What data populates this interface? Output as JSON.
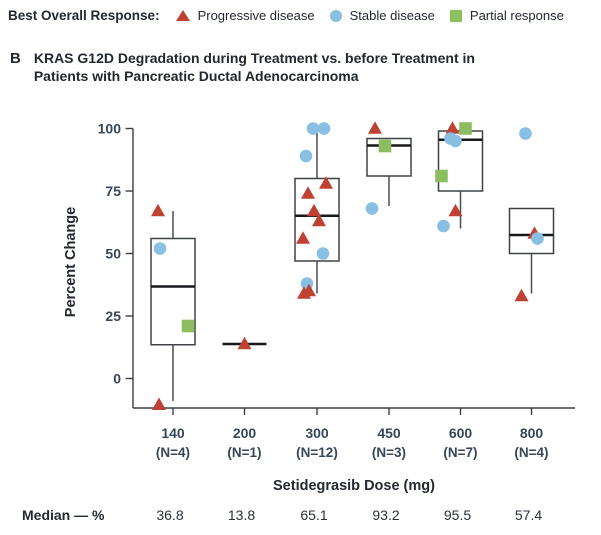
{
  "colors": {
    "progressive_disease": "#bf4132",
    "stable_disease": "#88bfe2",
    "partial_response": "#8cbe5f",
    "box_stroke": "#3f4347",
    "median_line": "#17191c",
    "axis_line": "#3a3e44",
    "tick_text": "#39465a",
    "title_text": "#24292f"
  },
  "legend": {
    "title": "Best Overall Response:",
    "items": [
      {
        "id": "progressive-disease",
        "marker": "triangle",
        "label": "Progressive disease"
      },
      {
        "id": "stable-disease",
        "marker": "circle",
        "label": "Stable disease"
      },
      {
        "id": "partial-response",
        "marker": "square",
        "label": "Partial response"
      }
    ]
  },
  "panel": {
    "letter": "B",
    "title_line1": "KRAS G12D Degradation during Treatment vs. before Treatment in",
    "title_line2": "Patients with Pancreatic Ductal Adenocarcinoma"
  },
  "chart_data": {
    "type": "box-scatter",
    "title": "KRAS G12D Degradation during Treatment vs. before Treatment in Patients with Pancreatic Ductal Adenocarcinoma",
    "ylabel": "Percent Change",
    "xlabel": "Setidegrasib Dose (mg)",
    "yticks": [
      0,
      25,
      50,
      75,
      100
    ],
    "ylim": [
      -14,
      103
    ],
    "grid": false,
    "legend_position": "top",
    "marker_types": {
      "PD": "Progressive disease (red triangle)",
      "SD": "Stable disease (blue circle)",
      "PR": "Partial response (green square)"
    },
    "median_row_label": "Median — %",
    "categories": [
      {
        "dose": "140",
        "n": "(N=4)",
        "median": "36.8",
        "box": {
          "q1": 13.5,
          "median": 36.8,
          "q3": 56,
          "whisker_low": -9,
          "whisker_high": 67
        },
        "points": [
          {
            "type": "PD",
            "value": 67,
            "dx": -15
          },
          {
            "type": "SD",
            "value": 52,
            "dx": -13
          },
          {
            "type": "PR",
            "value": 21,
            "dx": 15
          },
          {
            "type": "PD",
            "value": -10.5,
            "dx": -14
          }
        ]
      },
      {
        "dose": "200",
        "n": "(N=1)",
        "median": "13.8",
        "box": {
          "q1": 13.8,
          "median": 13.8,
          "q3": 13.8,
          "whisker_low": 13.8,
          "whisker_high": 13.8
        },
        "points": [
          {
            "type": "PD",
            "value": 13.8,
            "dx": 0
          }
        ]
      },
      {
        "dose": "300",
        "n": "(N=12)",
        "median": "65.1",
        "box": {
          "q1": 47,
          "median": 65.1,
          "q3": 80,
          "whisker_low": 34,
          "whisker_high": 100
        },
        "points": [
          {
            "type": "SD",
            "value": 100,
            "dx": -4
          },
          {
            "type": "SD",
            "value": 100,
            "dx": 7
          },
          {
            "type": "SD",
            "value": 89,
            "dx": -11
          },
          {
            "type": "PD",
            "value": 78,
            "dx": 9
          },
          {
            "type": "PD",
            "value": 74,
            "dx": -9
          },
          {
            "type": "PD",
            "value": 67,
            "dx": -3
          },
          {
            "type": "PD",
            "value": 63,
            "dx": 2
          },
          {
            "type": "PD",
            "value": 56,
            "dx": -14
          },
          {
            "type": "SD",
            "value": 50,
            "dx": 6
          },
          {
            "type": "SD",
            "value": 38,
            "dx": -10
          },
          {
            "type": "PD",
            "value": 35,
            "dx": -8
          },
          {
            "type": "PD",
            "value": 34,
            "dx": -13
          }
        ]
      },
      {
        "dose": "450",
        "n": "(N=3)",
        "median": "93.2",
        "box": {
          "q1": 81,
          "median": 93.2,
          "q3": 96,
          "whisker_low": 69,
          "whisker_high": 96
        },
        "points": [
          {
            "type": "PD",
            "value": 100,
            "dx": -14
          },
          {
            "type": "PR",
            "value": 93,
            "dx": -4
          },
          {
            "type": "SD",
            "value": 68,
            "dx": -17
          }
        ]
      },
      {
        "dose": "600",
        "n": "(N=7)",
        "median": "95.5",
        "box": {
          "q1": 75,
          "median": 95.5,
          "q3": 99,
          "whisker_low": 60,
          "whisker_high": 99
        },
        "points": [
          {
            "type": "PD",
            "value": 100,
            "dx": -8
          },
          {
            "type": "PR",
            "value": 100,
            "dx": 5
          },
          {
            "type": "SD",
            "value": 95,
            "dx": -5
          },
          {
            "type": "SD",
            "value": 96,
            "dx": -10
          },
          {
            "type": "PR",
            "value": 81,
            "dx": -19
          },
          {
            "type": "PD",
            "value": 67,
            "dx": -5
          },
          {
            "type": "SD",
            "value": 61,
            "dx": -17
          }
        ]
      },
      {
        "dose": "800",
        "n": "(N=4)",
        "median": "57.4",
        "box": {
          "q1": 50,
          "median": 57.4,
          "q3": 68,
          "whisker_low": 34,
          "whisker_high": 68
        },
        "points": [
          {
            "type": "SD",
            "value": 98,
            "dx": -6
          },
          {
            "type": "PD",
            "value": 58,
            "dx": 3
          },
          {
            "type": "SD",
            "value": 56,
            "dx": 6
          },
          {
            "type": "PD",
            "value": 33,
            "dx": -10
          }
        ]
      }
    ]
  }
}
